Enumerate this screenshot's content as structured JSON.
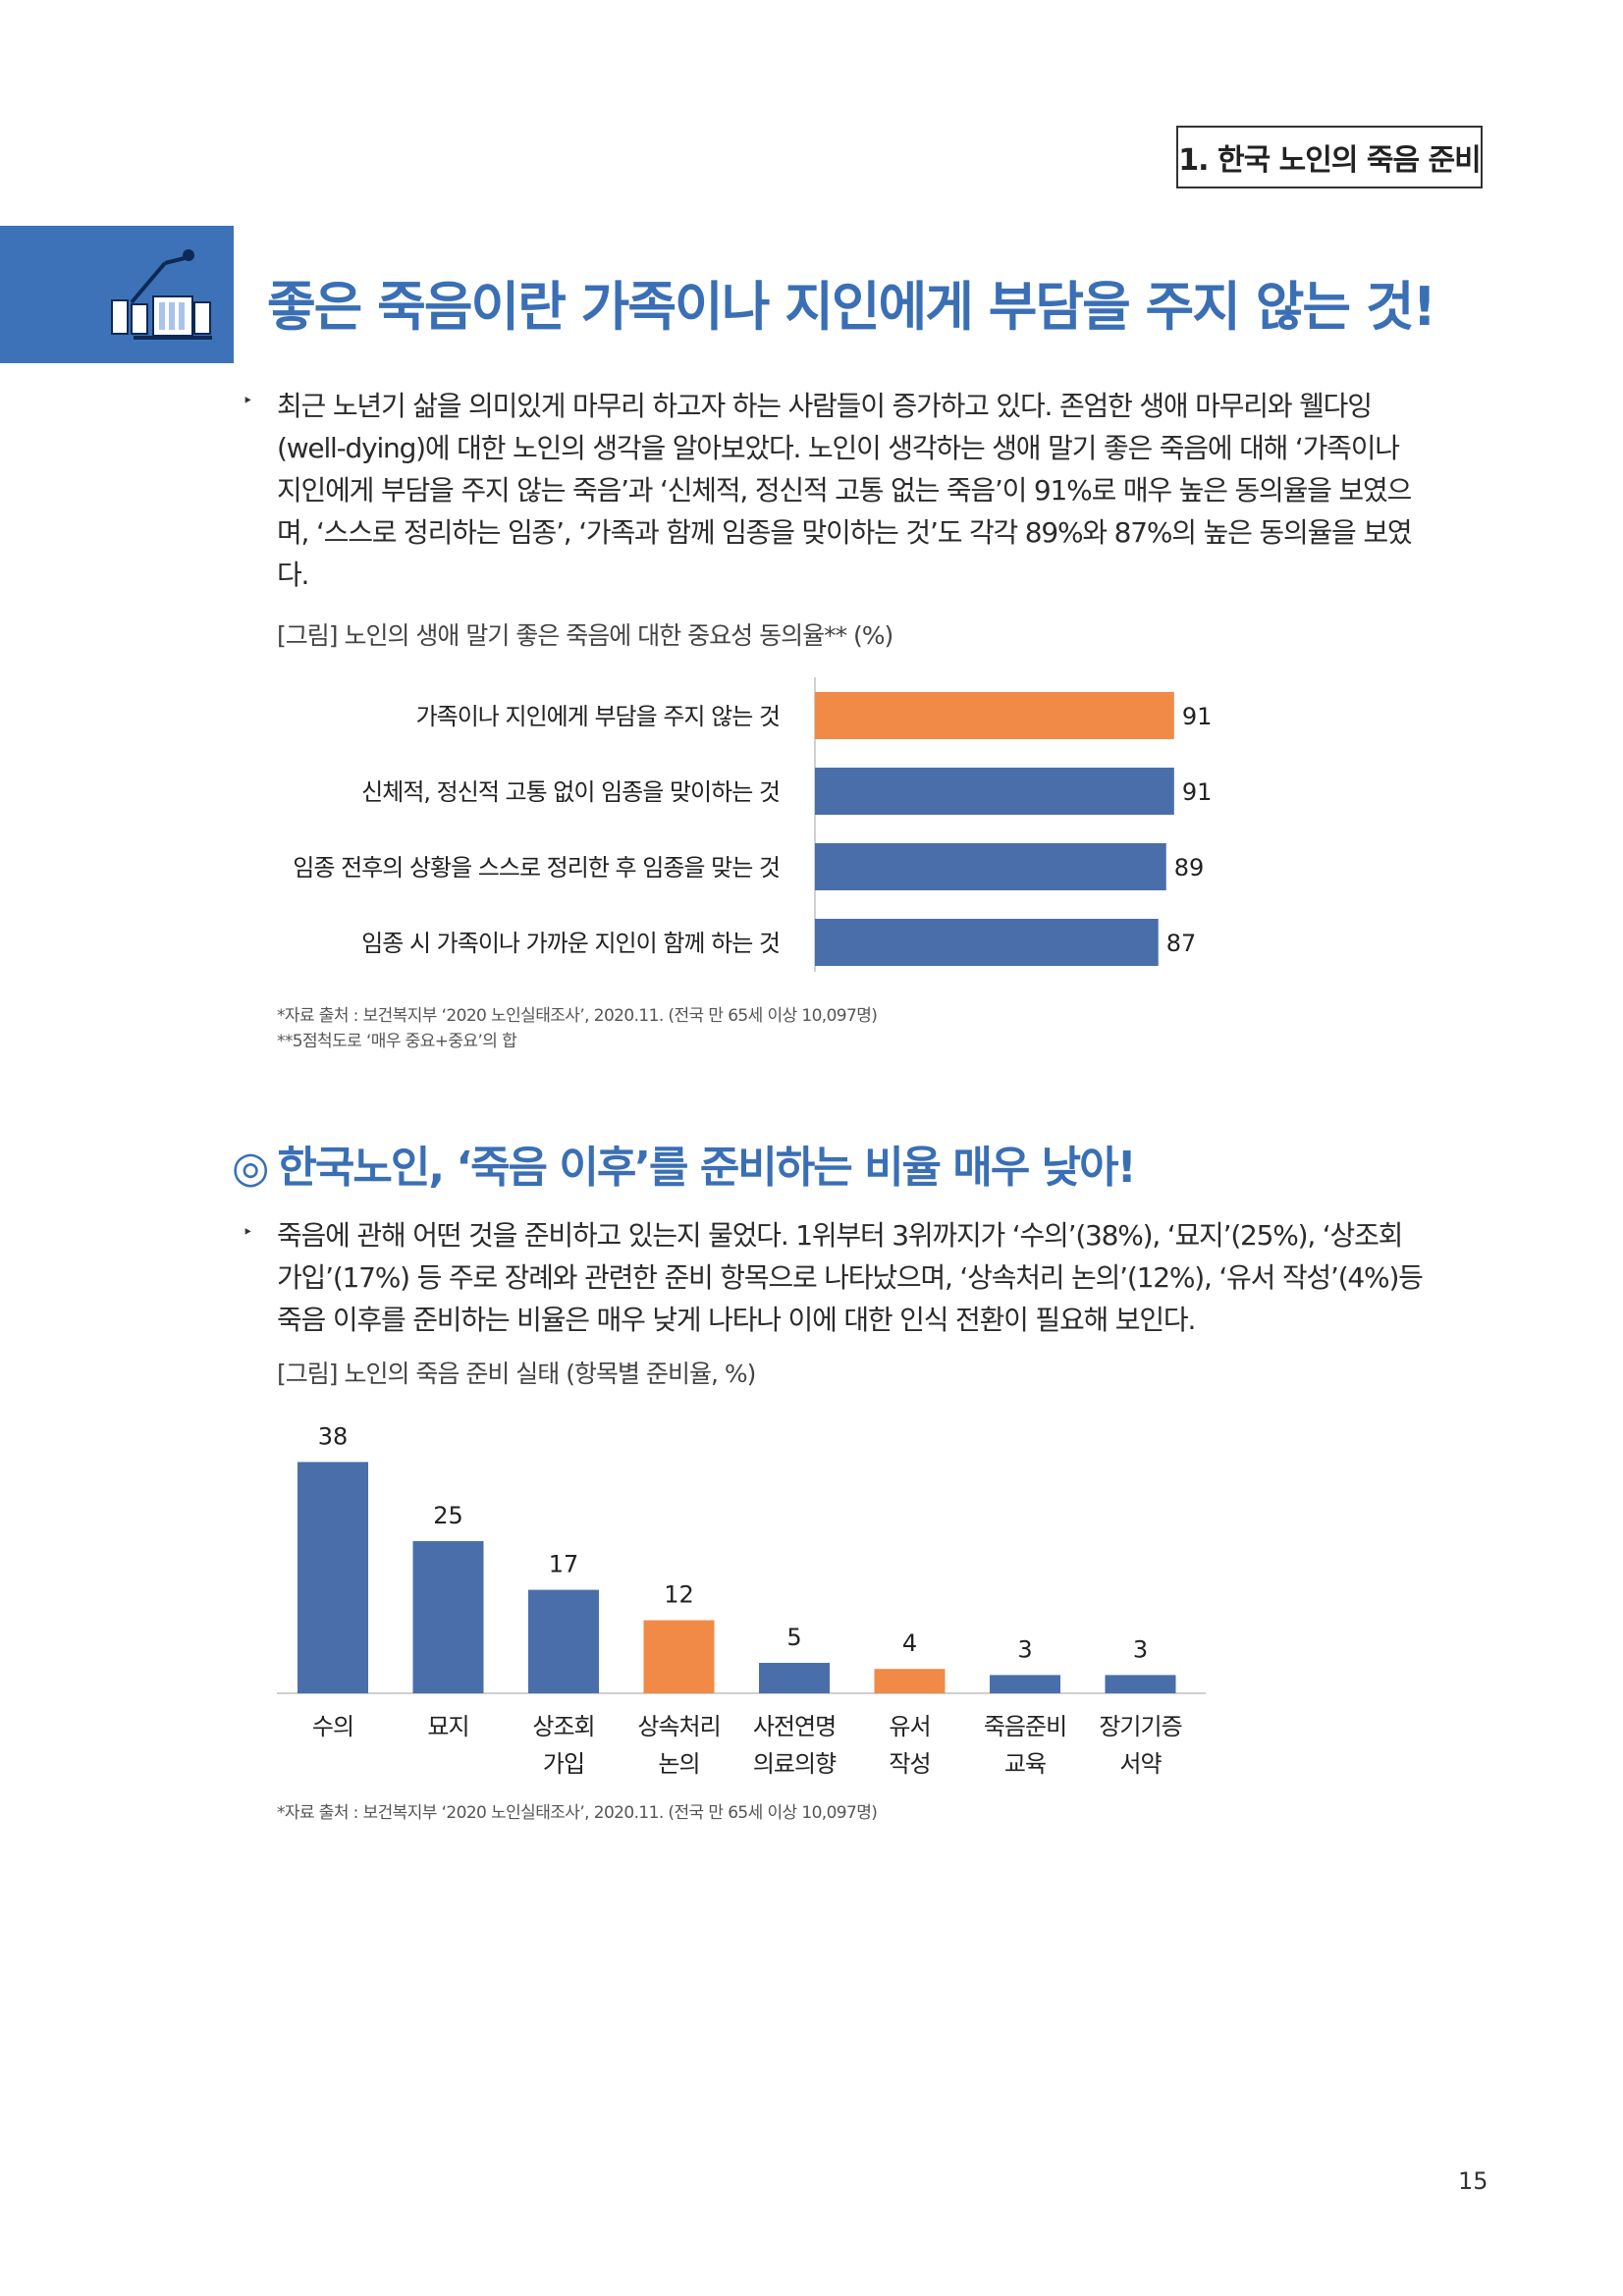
{
  "header": {
    "section_tag": "1. 한국 노인의 죽음 준비"
  },
  "icon": {
    "name": "caregiver-icon"
  },
  "headline": "좋은 죽음이란 가족이나 지인에게 부담을 주지 않는 것!",
  "section1": {
    "bullet": "‣",
    "paragraph_lines": [
      "최근 노년기 삶을 의미있게 마무리 하고자 하는 사람들이 증가하고 있다. 존엄한 생애 마무리와 웰다잉",
      "(well-dying)에 대한 노인의 생각을 알아보았다. 노인이 생각하는 생애 말기 좋은 죽음에 대해 ‘가족이나",
      "지인에게 부담을 주지 않는 죽음’과 ‘신체적, 정신적 고통 없는 죽음’이 91%로 매우 높은 동의율을 보였으",
      "며, ‘스스로 정리하는 임종’, ‘가족과 함께 임종을 맞이하는 것’도 각각 89%와 87%의 높은 동의율을 보였",
      "다."
    ],
    "figure_caption": "[그림] 노인의 생애 말기 좋은 죽음에 대한 중요성 동의율** (%)",
    "source_line1": "*자료 출처 : 보건복지부 ‘2020 노인실태조사’, 2020.11. (전국 만 65세 이상 10,097명)",
    "source_line2": "**5점척도로 ‘매우 중요+중요’의 합"
  },
  "section2": {
    "mark": "◎",
    "subheading": "한국노인, ‘죽음 이후’를 준비하는 비율 매우 낮아!",
    "bullet": "‣",
    "paragraph_lines": [
      "죽음에 관해 어떤 것을 준비하고 있는지 물었다. 1위부터 3위까지가 ‘수의’(38%), ‘묘지’(25%), ‘상조회",
      "가입’(17%) 등 주로 장례와 관련한 준비 항목으로 나타났으며, ‘상속처리 논의’(12%), ‘유서 작성’(4%)등",
      "죽음 이후를 준비하는 비율은 매우 낮게 나타나 이에 대한 인식 전환이 필요해 보인다."
    ],
    "figure_caption": "[그림] 노인의 죽음 준비 실태 (항목별 준비율, %)",
    "source_line1": "*자료 출처 : 보건복지부 ‘2020 노인실태조사’, 2020.11. (전국 만 65세 이상 10,097명)"
  },
  "page_number": "15",
  "colors": {
    "blue": "#4a6eaa",
    "orange": "#f08a46",
    "accent": "#3a6fb5"
  },
  "chart_data": [
    {
      "type": "bar",
      "orientation": "horizontal",
      "categories": [
        "가족이나 지인에게 부담을 주지 않는 것",
        "신체적, 정신적 고통 없이 임종을 맞이하는 것",
        "임종 전후의 상황을 스스로 정리한 후 임종을 맞는 것",
        "임종 시 가족이나 가까운 지인이 함께 하는 것"
      ],
      "values": [
        91,
        91,
        89,
        87
      ],
      "highlight_index": [
        0
      ],
      "title": "[그림] 노인의 생애 말기 좋은 죽음에 대한 중요성 동의율** (%)",
      "xlim": [
        0,
        100
      ],
      "grid": false
    },
    {
      "type": "bar",
      "orientation": "vertical",
      "categories": [
        [
          "수의"
        ],
        [
          "묘지"
        ],
        [
          "상조회",
          "가입"
        ],
        [
          "상속처리",
          "논의"
        ],
        [
          "사전연명",
          "의료의향"
        ],
        [
          "유서",
          "작성"
        ],
        [
          "죽음준비",
          "교육"
        ],
        [
          "장기기증",
          "서약"
        ]
      ],
      "values": [
        38,
        25,
        17,
        12,
        5,
        4,
        3,
        3
      ],
      "highlight_index": [
        3,
        5
      ],
      "title": "[그림] 노인의 죽음 준비 실태 (항목별 준비율, %)",
      "ylim": [
        0,
        42
      ],
      "grid": false
    }
  ]
}
